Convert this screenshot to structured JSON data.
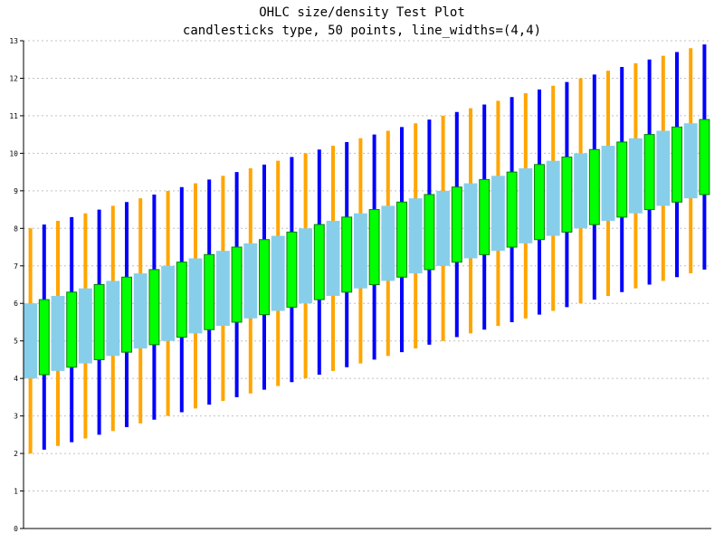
{
  "chart_data": {
    "type": "candlestick",
    "title": "OHLC size/density Test Plot",
    "subtitle": "candlesticks type, 50 points, line_widths=(4,4)",
    "xlabel": "",
    "ylabel": "",
    "ylim": [
      0,
      13
    ],
    "y_ticks": [
      0,
      1,
      2,
      3,
      4,
      5,
      6,
      7,
      8,
      9,
      10,
      11,
      12,
      13
    ],
    "grid": "horizontal dotted",
    "points": 50,
    "point_index_start": 0,
    "rule": "point i: low = 2 + 0.1*i, high = low + 6, body spans low+2 to low+4; even i: open = low+2 (top of body reached by close = low+4, up); odd i: open = low+4, close = low+2 (down)",
    "open": [
      4.0,
      6.1,
      4.2,
      6.3,
      4.4,
      6.5,
      4.6,
      6.7,
      4.8,
      6.9,
      5.0,
      7.1,
      5.2,
      7.3,
      5.4,
      7.5,
      5.6,
      7.7,
      5.8,
      7.9,
      6.0,
      8.1,
      6.2,
      8.3,
      6.4,
      8.5,
      6.6,
      8.7,
      6.8,
      8.9,
      7.0,
      9.1,
      7.2,
      9.3,
      7.4,
      9.5,
      7.6,
      9.7,
      7.8,
      9.9,
      8.0,
      10.1,
      8.2,
      10.3,
      8.4,
      10.5,
      8.6,
      10.7,
      8.8,
      10.9
    ],
    "close": [
      6.0,
      4.1,
      6.2,
      4.3,
      6.4,
      4.5,
      6.6,
      4.7,
      6.8,
      4.9,
      7.0,
      5.1,
      7.2,
      5.3,
      7.4,
      5.5,
      7.6,
      5.7,
      7.8,
      5.9,
      8.0,
      6.1,
      8.2,
      6.3,
      8.4,
      6.5,
      8.6,
      6.7,
      8.8,
      6.9,
      9.0,
      7.1,
      9.2,
      7.3,
      9.4,
      7.5,
      9.6,
      7.7,
      9.8,
      7.9,
      10.0,
      8.1,
      10.2,
      8.3,
      10.4,
      8.5,
      10.6,
      8.7,
      10.8,
      8.9
    ],
    "low": [
      2.0,
      2.1,
      2.2,
      2.3,
      2.4,
      2.5,
      2.6,
      2.7,
      2.8,
      2.9,
      3.0,
      3.1,
      3.2,
      3.3,
      3.4,
      3.5,
      3.6,
      3.7,
      3.8,
      3.9,
      4.0,
      4.1,
      4.2,
      4.3,
      4.4,
      4.5,
      4.6,
      4.7,
      4.8,
      4.9,
      5.0,
      5.1,
      5.2,
      5.3,
      5.4,
      5.5,
      5.6,
      5.7,
      5.8,
      5.9,
      6.0,
      6.1,
      6.2,
      6.3,
      6.4,
      6.5,
      6.6,
      6.7,
      6.8,
      6.9
    ],
    "high": [
      8.0,
      8.1,
      8.2,
      8.3,
      8.4,
      8.5,
      8.6,
      8.7,
      8.8,
      8.9,
      9.0,
      9.1,
      9.2,
      9.3,
      9.4,
      9.5,
      9.6,
      9.7,
      9.8,
      9.9,
      10.0,
      10.1,
      10.2,
      10.3,
      10.4,
      10.5,
      10.6,
      10.7,
      10.8,
      10.9,
      11.0,
      11.1,
      11.2,
      11.3,
      11.4,
      11.5,
      11.6,
      11.7,
      11.8,
      11.9,
      12.0,
      12.1,
      12.2,
      12.3,
      12.4,
      12.5,
      12.6,
      12.7,
      12.8,
      12.9
    ],
    "colors": {
      "up_body": "#87ceeb",
      "up_wick": "#ffa500",
      "down_body": "#00ff00",
      "down_body_edge": "#008000",
      "down_wick": "#0000ff",
      "grid": "#c0c0c0",
      "axis": "#000000"
    }
  }
}
